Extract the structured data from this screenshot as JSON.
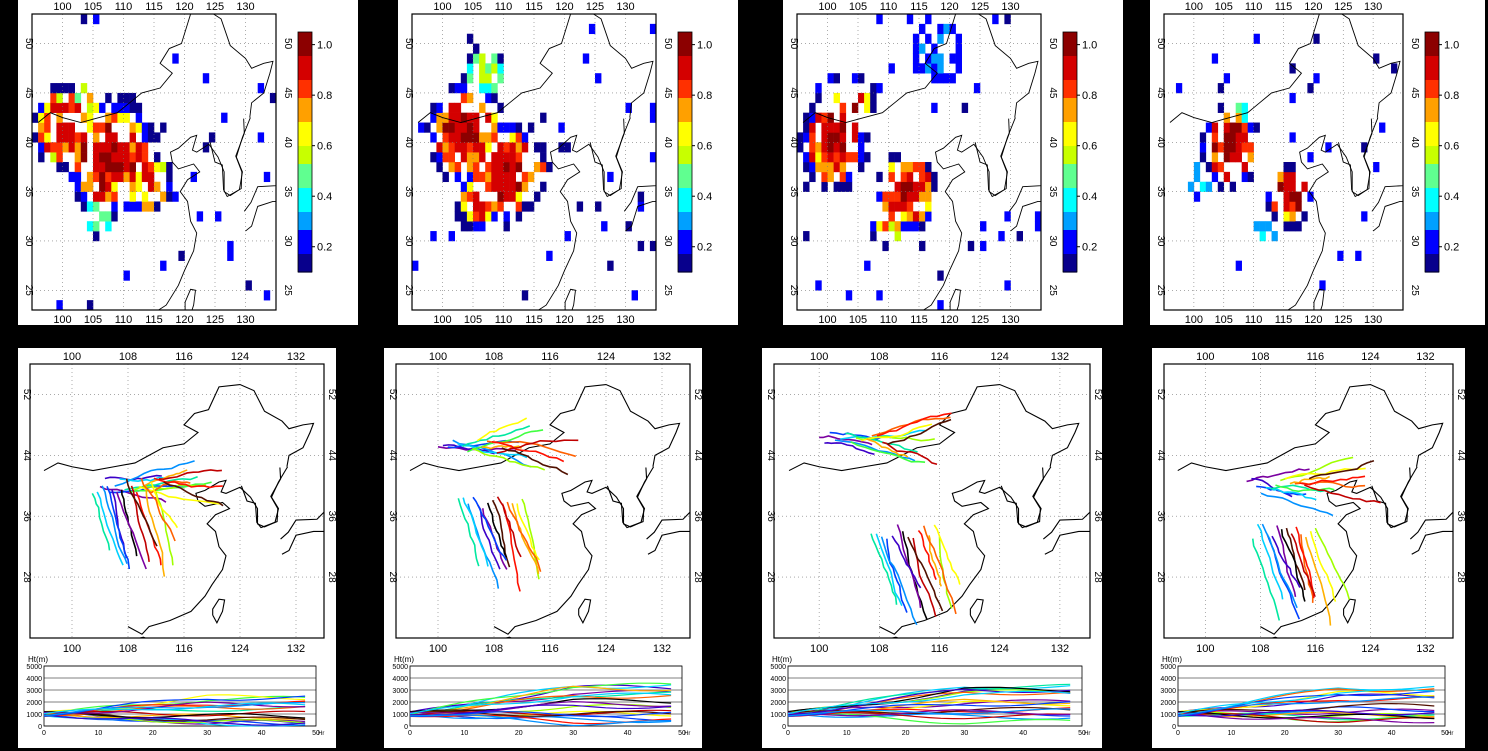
{
  "colorbar": {
    "ticks": [
      "1.0",
      "0.8",
      "0.6",
      "0.4",
      "0.2"
    ],
    "values": [
      1.0,
      0.8,
      0.6,
      0.4,
      0.2
    ],
    "min": 0.1,
    "max": 1.05,
    "colors": [
      "#08008c",
      "#0000ff",
      "#00a0ff",
      "#00ffff",
      "#60ff90",
      "#c8ff00",
      "#ffff00",
      "#ffa000",
      "#ff3000",
      "#d40000",
      "#8c0000"
    ]
  },
  "heatmaps": [
    {
      "id": "h1",
      "lon_ticks": [
        "100",
        "105",
        "110",
        "115",
        "120",
        "125",
        "130"
      ],
      "lat_ticks": [
        "50",
        "45",
        "40",
        "35",
        "30",
        "25"
      ]
    },
    {
      "id": "h2",
      "lon_ticks": [
        "100",
        "105",
        "110",
        "115",
        "120",
        "125",
        "130"
      ],
      "lat_ticks": [
        "50",
        "45",
        "40",
        "35",
        "30",
        "25"
      ]
    },
    {
      "id": "h3",
      "lon_ticks": [
        "100",
        "105",
        "110",
        "115",
        "120",
        "125",
        "130"
      ],
      "lat_ticks": [
        "50",
        "45",
        "40",
        "35",
        "30",
        "25"
      ]
    },
    {
      "id": "h4",
      "lon_ticks": [
        "100",
        "105",
        "110",
        "115",
        "120",
        "125",
        "130"
      ],
      "lat_ticks": [
        "50",
        "45",
        "40",
        "35",
        "30",
        "25"
      ]
    }
  ],
  "trajectory_maps": [
    {
      "id": "t1",
      "lon_ticks": [
        "100",
        "108",
        "116",
        "124",
        "132"
      ],
      "lat_ticks": [
        "52",
        "44",
        "36",
        "28"
      ],
      "bundles": [
        {
          "lon": 104,
          "lat": 40,
          "dir": 1
        },
        {
          "lon": 112,
          "lat": 40,
          "dir": -1
        }
      ]
    },
    {
      "id": "t2",
      "lon_ticks": [
        "100",
        "108",
        "116",
        "124",
        "132"
      ],
      "lat_ticks": [
        "52",
        "44",
        "36",
        "28"
      ],
      "bundles": [
        {
          "lon": 100,
          "lat": 45,
          "dir": 1
        },
        {
          "lon": 112,
          "lat": 38,
          "dir": -1
        }
      ]
    },
    {
      "id": "t3",
      "lon_ticks": [
        "100",
        "108",
        "116",
        "124",
        "132"
      ],
      "lat_ticks": [
        "52",
        "44",
        "36",
        "28"
      ],
      "bundles": [
        {
          "lon": 100,
          "lat": 46,
          "dir": 1
        },
        {
          "lon": 116,
          "lat": 34,
          "dir": -1
        }
      ]
    },
    {
      "id": "t4",
      "lon_ticks": [
        "100",
        "108",
        "116",
        "124",
        "132"
      ],
      "lat_ticks": [
        "52",
        "44",
        "36",
        "28"
      ],
      "bundles": [
        {
          "lon": 106,
          "lat": 40,
          "dir": 1
        },
        {
          "lon": 116,
          "lat": 34,
          "dir": -1
        }
      ]
    }
  ],
  "height_plots": [
    {
      "id": "p1",
      "ylabel": "Ht(m)",
      "yticks": [
        "5000",
        "4000",
        "3000",
        "2000",
        "1000",
        "0"
      ],
      "xticks": [
        "0",
        "10",
        "20",
        "30",
        "40",
        "50"
      ],
      "xunit": "Hr"
    },
    {
      "id": "p2",
      "ylabel": "Ht(m)",
      "yticks": [
        "5000",
        "4000",
        "3000",
        "2000",
        "1000",
        "0"
      ],
      "xticks": [
        "0",
        "10",
        "20",
        "30",
        "40",
        "50"
      ],
      "xunit": "Hr"
    },
    {
      "id": "p3",
      "ylabel": "Ht(m)",
      "yticks": [
        "5000",
        "4000",
        "3000",
        "2000",
        "1000",
        "0"
      ],
      "xticks": [
        "0",
        "10",
        "20",
        "30",
        "40",
        "50"
      ],
      "xunit": "Hr"
    },
    {
      "id": "p4",
      "ylabel": "Ht(m)",
      "yticks": [
        "5000",
        "4000",
        "3000",
        "2000",
        "1000",
        "0"
      ],
      "xticks": [
        "0",
        "10",
        "20",
        "30",
        "40",
        "50"
      ],
      "xunit": "Hr"
    }
  ]
}
